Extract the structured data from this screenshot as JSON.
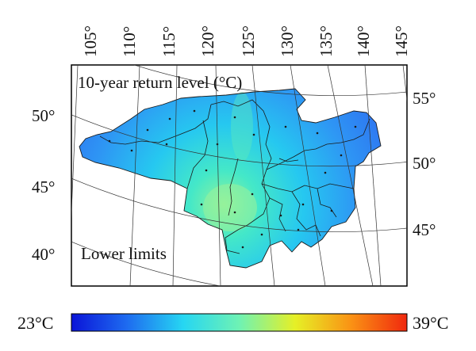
{
  "map": {
    "title": "10-year return level (°C)",
    "annotation": "Lower limits"
  },
  "longitude_labels": [
    "105°",
    "110°",
    "115°",
    "120°",
    "125°",
    "130°",
    "135°",
    "140°",
    "145°"
  ],
  "left_latitude_labels": [
    "50°",
    "45°",
    "40°"
  ],
  "right_latitude_labels": [
    "55°",
    "50°",
    "45°"
  ],
  "colorbar": {
    "min_label": "23°C",
    "max_label": "39°C",
    "colors": [
      "#0a14d8",
      "#1e6cf0",
      "#26d6f2",
      "#6ef2b4",
      "#e6f026",
      "#fa9214",
      "#f0280e"
    ]
  }
}
